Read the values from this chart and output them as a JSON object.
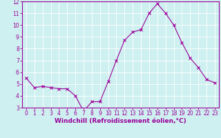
{
  "x": [
    0,
    1,
    2,
    3,
    4,
    5,
    6,
    7,
    8,
    9,
    10,
    11,
    12,
    13,
    14,
    15,
    16,
    17,
    18,
    19,
    20,
    21,
    22,
    23
  ],
  "y": [
    5.5,
    4.7,
    4.8,
    4.7,
    4.6,
    4.6,
    4.0,
    2.7,
    3.5,
    3.5,
    5.2,
    7.0,
    8.7,
    9.4,
    9.6,
    11.0,
    11.8,
    11.0,
    10.0,
    8.5,
    7.2,
    6.4,
    5.4,
    5.1
  ],
  "line_color": "#990099",
  "marker": "x",
  "marker_size": 3,
  "background_color": "#cff0f0",
  "grid_color": "#ffffff",
  "xlabel": "Windchill (Refroidissement éolien,°C)",
  "xlabel_color": "#990099",
  "tick_color": "#990099",
  "ylim": [
    3,
    12
  ],
  "xlim": [
    -0.5,
    23.5
  ],
  "yticks": [
    3,
    4,
    5,
    6,
    7,
    8,
    9,
    10,
    11,
    12
  ],
  "xticks": [
    0,
    1,
    2,
    3,
    4,
    5,
    6,
    7,
    8,
    9,
    10,
    11,
    12,
    13,
    14,
    15,
    16,
    17,
    18,
    19,
    20,
    21,
    22,
    23
  ],
  "tick_fontsize": 5.5,
  "xlabel_fontsize": 6.5,
  "spine_color": "#990099",
  "linewidth": 0.8,
  "marker_linewidth": 0.8
}
